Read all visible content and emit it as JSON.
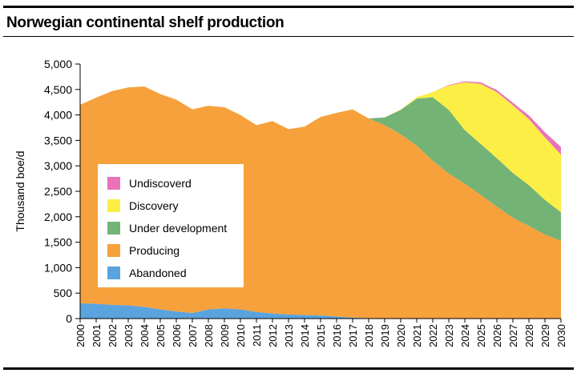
{
  "chart_data": {
    "type": "area",
    "stacked": true,
    "title": "Norwegian continental shelf production",
    "ylabel": "Thousand boe/d",
    "xlabel": "",
    "ylim": [
      0,
      5000
    ],
    "yticks": [
      0,
      500,
      1000,
      1500,
      2000,
      2500,
      3000,
      3500,
      4000,
      4500,
      5000
    ],
    "ytick_labels": [
      "0",
      "500",
      "1,000",
      "1,500",
      "2,000",
      "2,500",
      "3,000",
      "3,500",
      "4,000",
      "4,500",
      "5,000"
    ],
    "x": [
      "2000",
      "2001",
      "2002",
      "2003",
      "2004",
      "2005",
      "2006",
      "2007",
      "2008",
      "2009",
      "2010",
      "2011",
      "2012",
      "2013",
      "2014",
      "2015",
      "2016",
      "2017",
      "2018",
      "2019",
      "2020",
      "2021",
      "2022",
      "2023",
      "2024",
      "2025",
      "2026",
      "2027",
      "2028",
      "2029",
      "2030"
    ],
    "legend_position": "center-left",
    "legend_order": [
      "Undiscoverd",
      "Discovery",
      "Under development",
      "Producing",
      "Abandoned"
    ],
    "series": [
      {
        "name": "Abandoned",
        "color": "#5aa3de",
        "values": [
          300,
          290,
          270,
          260,
          230,
          180,
          140,
          110,
          180,
          200,
          180,
          130,
          100,
          80,
          70,
          60,
          40,
          20,
          10,
          0,
          0,
          0,
          0,
          0,
          0,
          0,
          0,
          0,
          0,
          0,
          0
        ]
      },
      {
        "name": "Producing",
        "color": "#f6a13c",
        "values": [
          3900,
          4050,
          4200,
          4280,
          4330,
          4230,
          4160,
          4000,
          4000,
          3950,
          3820,
          3670,
          3780,
          3640,
          3700,
          3900,
          4000,
          4090,
          3920,
          3800,
          3620,
          3400,
          3100,
          2850,
          2650,
          2430,
          2200,
          1980,
          1820,
          1650,
          1530
        ]
      },
      {
        "name": "Under development",
        "color": "#73b376",
        "values": [
          0,
          0,
          0,
          0,
          0,
          0,
          0,
          0,
          0,
          0,
          0,
          0,
          0,
          0,
          0,
          0,
          0,
          0,
          0,
          150,
          480,
          920,
          1250,
          1250,
          1050,
          1000,
          950,
          880,
          800,
          680,
          560
        ]
      },
      {
        "name": "Discovery",
        "color": "#fbee45",
        "values": [
          0,
          0,
          0,
          0,
          0,
          0,
          0,
          0,
          0,
          0,
          0,
          0,
          0,
          0,
          0,
          0,
          0,
          0,
          0,
          0,
          5,
          30,
          100,
          480,
          940,
          1180,
          1300,
          1330,
          1300,
          1230,
          1130
        ]
      },
      {
        "name": "Undiscoverd",
        "color": "#ea72b8",
        "values": [
          0,
          0,
          0,
          0,
          0,
          0,
          0,
          0,
          0,
          0,
          0,
          0,
          0,
          0,
          0,
          0,
          0,
          0,
          0,
          0,
          0,
          0,
          0,
          10,
          20,
          30,
          40,
          50,
          70,
          100,
          150
        ]
      }
    ]
  }
}
